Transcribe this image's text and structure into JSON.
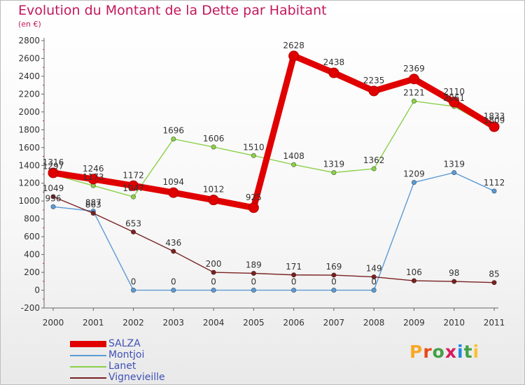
{
  "title": "Evolution du Montant de la Dette par Habitant",
  "subtitle": "(en €)",
  "brand": {
    "text": "Proxiti",
    "letter_colors": [
      "#f9a825",
      "#e64a19",
      "#43a047",
      "#d81b60",
      "#1e88e5",
      "#43a047",
      "#fbc02d"
    ]
  },
  "chart_data": {
    "type": "line",
    "title": "Evolution du Montant de la Dette par Habitant",
    "subtitle": "(en €)",
    "x": [
      "2000",
      "2001",
      "2002",
      "2003",
      "2004",
      "2005",
      "2006",
      "2007",
      "2008",
      "2009",
      "2010",
      "2011"
    ],
    "ylim": [
      -200,
      2800
    ],
    "yticks": [
      -200,
      0,
      200,
      400,
      600,
      800,
      1000,
      1200,
      1400,
      1600,
      1800,
      2000,
      2200,
      2400,
      2600,
      2800
    ],
    "grid": false,
    "legend_position": "bottom-left",
    "series": [
      {
        "name": "SALZA",
        "color": "#e00000",
        "values": [
          1316,
          1246,
          1172,
          1094,
          1012,
          925,
          2628,
          2438,
          2235,
          2369,
          2110,
          1833
        ]
      },
      {
        "name": "Montjoi",
        "color": "#5b9bd5",
        "values": [
          936,
          887,
          0,
          0,
          0,
          0,
          0,
          0,
          0,
          1209,
          1319,
          1112
        ]
      },
      {
        "name": "Lanet",
        "color": "#8bd14a",
        "values": [
          1297,
          1173,
          1047,
          1696,
          1606,
          1510,
          1408,
          1319,
          1362,
          2121,
          2061,
          1809
        ]
      },
      {
        "name": "Vignevieille",
        "color": "#7b2020",
        "values": [
          1049,
          863,
          653,
          436,
          200,
          189,
          171,
          169,
          149,
          106,
          98,
          85
        ]
      }
    ]
  }
}
